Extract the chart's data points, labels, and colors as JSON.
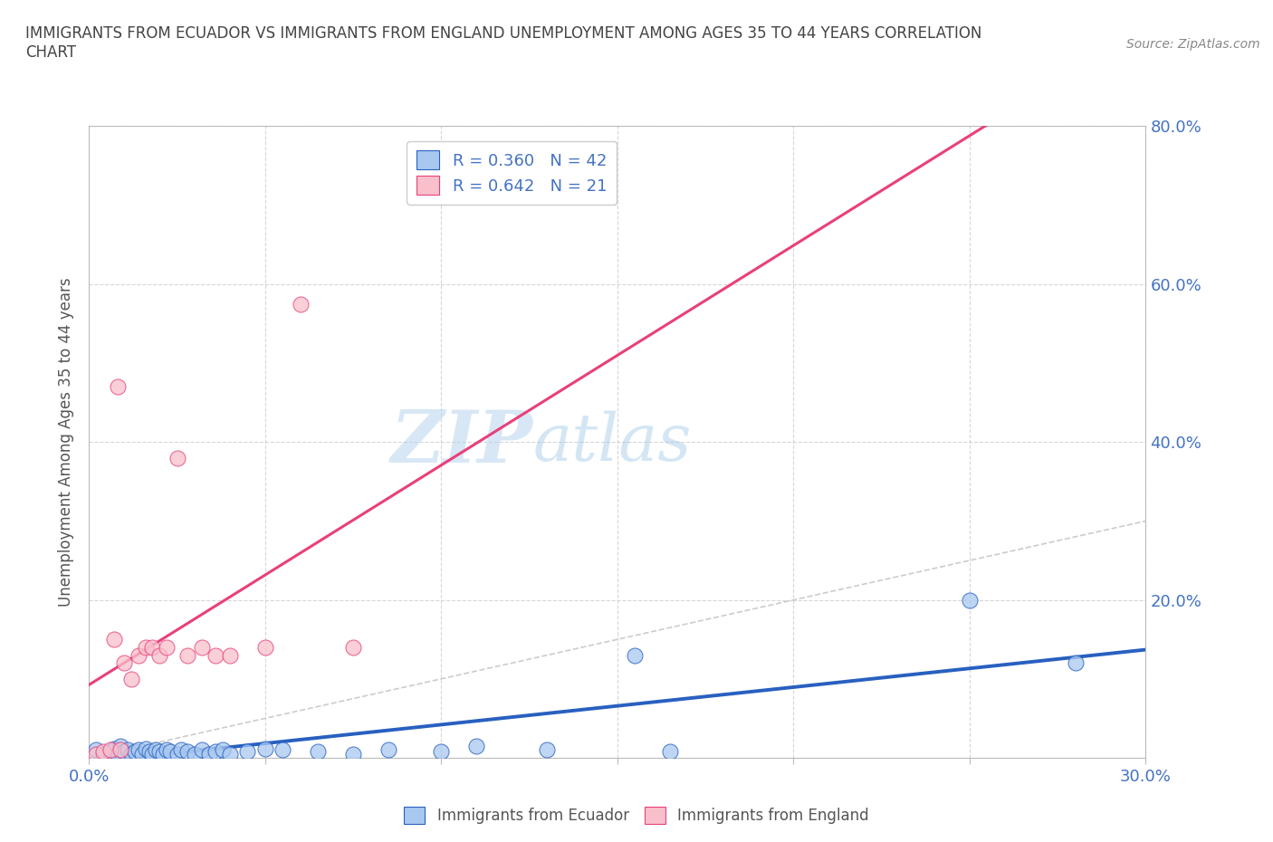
{
  "title": "IMMIGRANTS FROM ECUADOR VS IMMIGRANTS FROM ENGLAND UNEMPLOYMENT AMONG AGES 35 TO 44 YEARS CORRELATION\nCHART",
  "source_text": "Source: ZipAtlas.com",
  "ylabel_text": "Unemployment Among Ages 35 to 44 years",
  "legend_label_1": "Immigrants from Ecuador",
  "legend_label_2": "Immigrants from England",
  "r1": 0.36,
  "n1": 42,
  "r2": 0.642,
  "n2": 21,
  "xlim": [
    0.0,
    0.3
  ],
  "ylim": [
    0.0,
    0.8
  ],
  "xticks": [
    0.0,
    0.05,
    0.1,
    0.15,
    0.2,
    0.25,
    0.3
  ],
  "yticks": [
    0.0,
    0.2,
    0.4,
    0.6,
    0.8
  ],
  "xtick_labels": [
    "0.0%",
    "",
    "",
    "",
    "",
    "",
    "30.0%"
  ],
  "ytick_labels": [
    "",
    "20.0%",
    "40.0%",
    "60.0%",
    "80.0%"
  ],
  "color_ecuador": "#a8c8f0",
  "color_england": "#f9c0cc",
  "trendline_color_ecuador": "#2860c0",
  "trendline_color_england": "#e8407a",
  "watermark_color": "#d0e8f8",
  "watermark_text_zip": "ZIP",
  "watermark_text_atlas": "atlas",
  "ecuador_x": [
    0.002,
    0.004,
    0.006,
    0.007,
    0.008,
    0.009,
    0.01,
    0.011,
    0.012,
    0.013,
    0.014,
    0.015,
    0.016,
    0.017,
    0.018,
    0.019,
    0.02,
    0.021,
    0.022,
    0.023,
    0.025,
    0.026,
    0.028,
    0.03,
    0.032,
    0.034,
    0.036,
    0.038,
    0.04,
    0.045,
    0.05,
    0.055,
    0.065,
    0.075,
    0.085,
    0.1,
    0.11,
    0.13,
    0.155,
    0.165,
    0.25,
    0.28
  ],
  "ecuador_y": [
    0.01,
    0.005,
    0.008,
    0.012,
    0.005,
    0.015,
    0.008,
    0.01,
    0.005,
    0.008,
    0.01,
    0.005,
    0.012,
    0.008,
    0.005,
    0.01,
    0.008,
    0.005,
    0.01,
    0.008,
    0.005,
    0.01,
    0.008,
    0.005,
    0.01,
    0.005,
    0.008,
    0.01,
    0.005,
    0.008,
    0.012,
    0.01,
    0.008,
    0.005,
    0.01,
    0.008,
    0.015,
    0.01,
    0.13,
    0.008,
    0.2,
    0.12
  ],
  "england_x": [
    0.002,
    0.004,
    0.006,
    0.007,
    0.008,
    0.009,
    0.01,
    0.012,
    0.014,
    0.016,
    0.018,
    0.02,
    0.022,
    0.025,
    0.028,
    0.032,
    0.036,
    0.04,
    0.05,
    0.06,
    0.075
  ],
  "england_y": [
    0.005,
    0.008,
    0.01,
    0.15,
    0.47,
    0.01,
    0.12,
    0.1,
    0.13,
    0.14,
    0.14,
    0.13,
    0.14,
    0.38,
    0.13,
    0.14,
    0.13,
    0.13,
    0.14,
    0.575,
    0.14
  ]
}
